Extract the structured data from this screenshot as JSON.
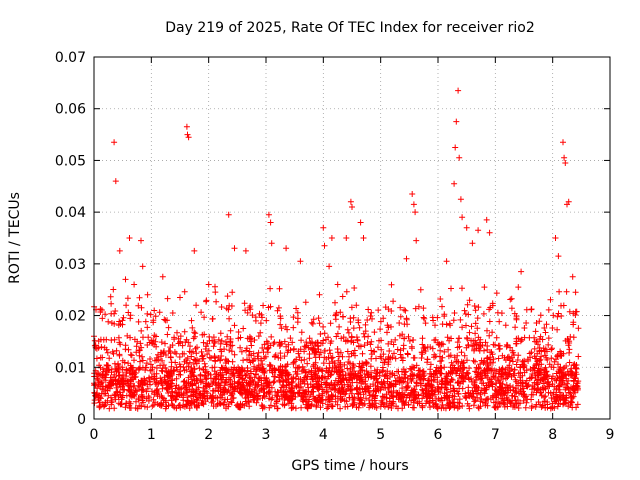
{
  "chart_data": {
    "type": "scatter",
    "title": "Day 219 of 2025, Rate Of TEC Index for receiver rio2",
    "xlabel": "GPS time / hours",
    "ylabel": "ROTI / TECUs",
    "xlim": [
      0,
      9
    ],
    "ylim": [
      0,
      0.07
    ],
    "x_ticks": [
      0,
      1,
      2,
      3,
      4,
      5,
      6,
      7,
      8,
      9
    ],
    "y_ticks": [
      0,
      0.01,
      0.02,
      0.03,
      0.04,
      0.05,
      0.06,
      0.07
    ],
    "grid": true,
    "marker": "+",
    "color": "#ff0000",
    "data_extent_hours": [
      0,
      8.45
    ],
    "series": [
      {
        "name": "ROTI",
        "points": [
          [
            0.0,
            0.016
          ],
          [
            0.02,
            0.0045
          ],
          [
            0.05,
            0.0085
          ],
          [
            0.35,
            0.0535
          ],
          [
            0.38,
            0.046
          ],
          [
            0.45,
            0.0325
          ],
          [
            0.55,
            0.027
          ],
          [
            0.62,
            0.035
          ],
          [
            0.7,
            0.026
          ],
          [
            0.82,
            0.0345
          ],
          [
            0.85,
            0.0295
          ],
          [
            1.2,
            0.0275
          ],
          [
            1.62,
            0.0565
          ],
          [
            1.63,
            0.055
          ],
          [
            1.65,
            0.0545
          ],
          [
            1.75,
            0.0325
          ],
          [
            2.0,
            0.026
          ],
          [
            2.35,
            0.0395
          ],
          [
            2.45,
            0.033
          ],
          [
            2.65,
            0.0325
          ],
          [
            3.05,
            0.0395
          ],
          [
            3.08,
            0.038
          ],
          [
            3.1,
            0.034
          ],
          [
            3.35,
            0.033
          ],
          [
            3.6,
            0.0305
          ],
          [
            4.0,
            0.037
          ],
          [
            4.02,
            0.0335
          ],
          [
            4.1,
            0.0295
          ],
          [
            4.15,
            0.035
          ],
          [
            4.25,
            0.026
          ],
          [
            4.4,
            0.035
          ],
          [
            4.48,
            0.042
          ],
          [
            4.5,
            0.041
          ],
          [
            4.65,
            0.038
          ],
          [
            4.7,
            0.035
          ],
          [
            5.45,
            0.031
          ],
          [
            5.55,
            0.0435
          ],
          [
            5.58,
            0.0415
          ],
          [
            5.6,
            0.04
          ],
          [
            5.62,
            0.0345
          ],
          [
            5.7,
            0.025
          ],
          [
            6.15,
            0.0305
          ],
          [
            6.28,
            0.0455
          ],
          [
            6.3,
            0.0525
          ],
          [
            6.32,
            0.0575
          ],
          [
            6.35,
            0.0635
          ],
          [
            6.37,
            0.0505
          ],
          [
            6.4,
            0.0425
          ],
          [
            6.42,
            0.039
          ],
          [
            6.5,
            0.037
          ],
          [
            6.6,
            0.034
          ],
          [
            6.7,
            0.0365
          ],
          [
            6.85,
            0.0385
          ],
          [
            6.9,
            0.036
          ],
          [
            7.4,
            0.0255
          ],
          [
            7.45,
            0.0285
          ],
          [
            8.05,
            0.035
          ],
          [
            8.1,
            0.0315
          ],
          [
            8.18,
            0.0535
          ],
          [
            8.2,
            0.0505
          ],
          [
            8.22,
            0.0495
          ],
          [
            8.25,
            0.0415
          ],
          [
            8.28,
            0.042
          ],
          [
            8.35,
            0.0275
          ],
          [
            8.4,
            0.0245
          ]
        ]
      }
    ]
  }
}
